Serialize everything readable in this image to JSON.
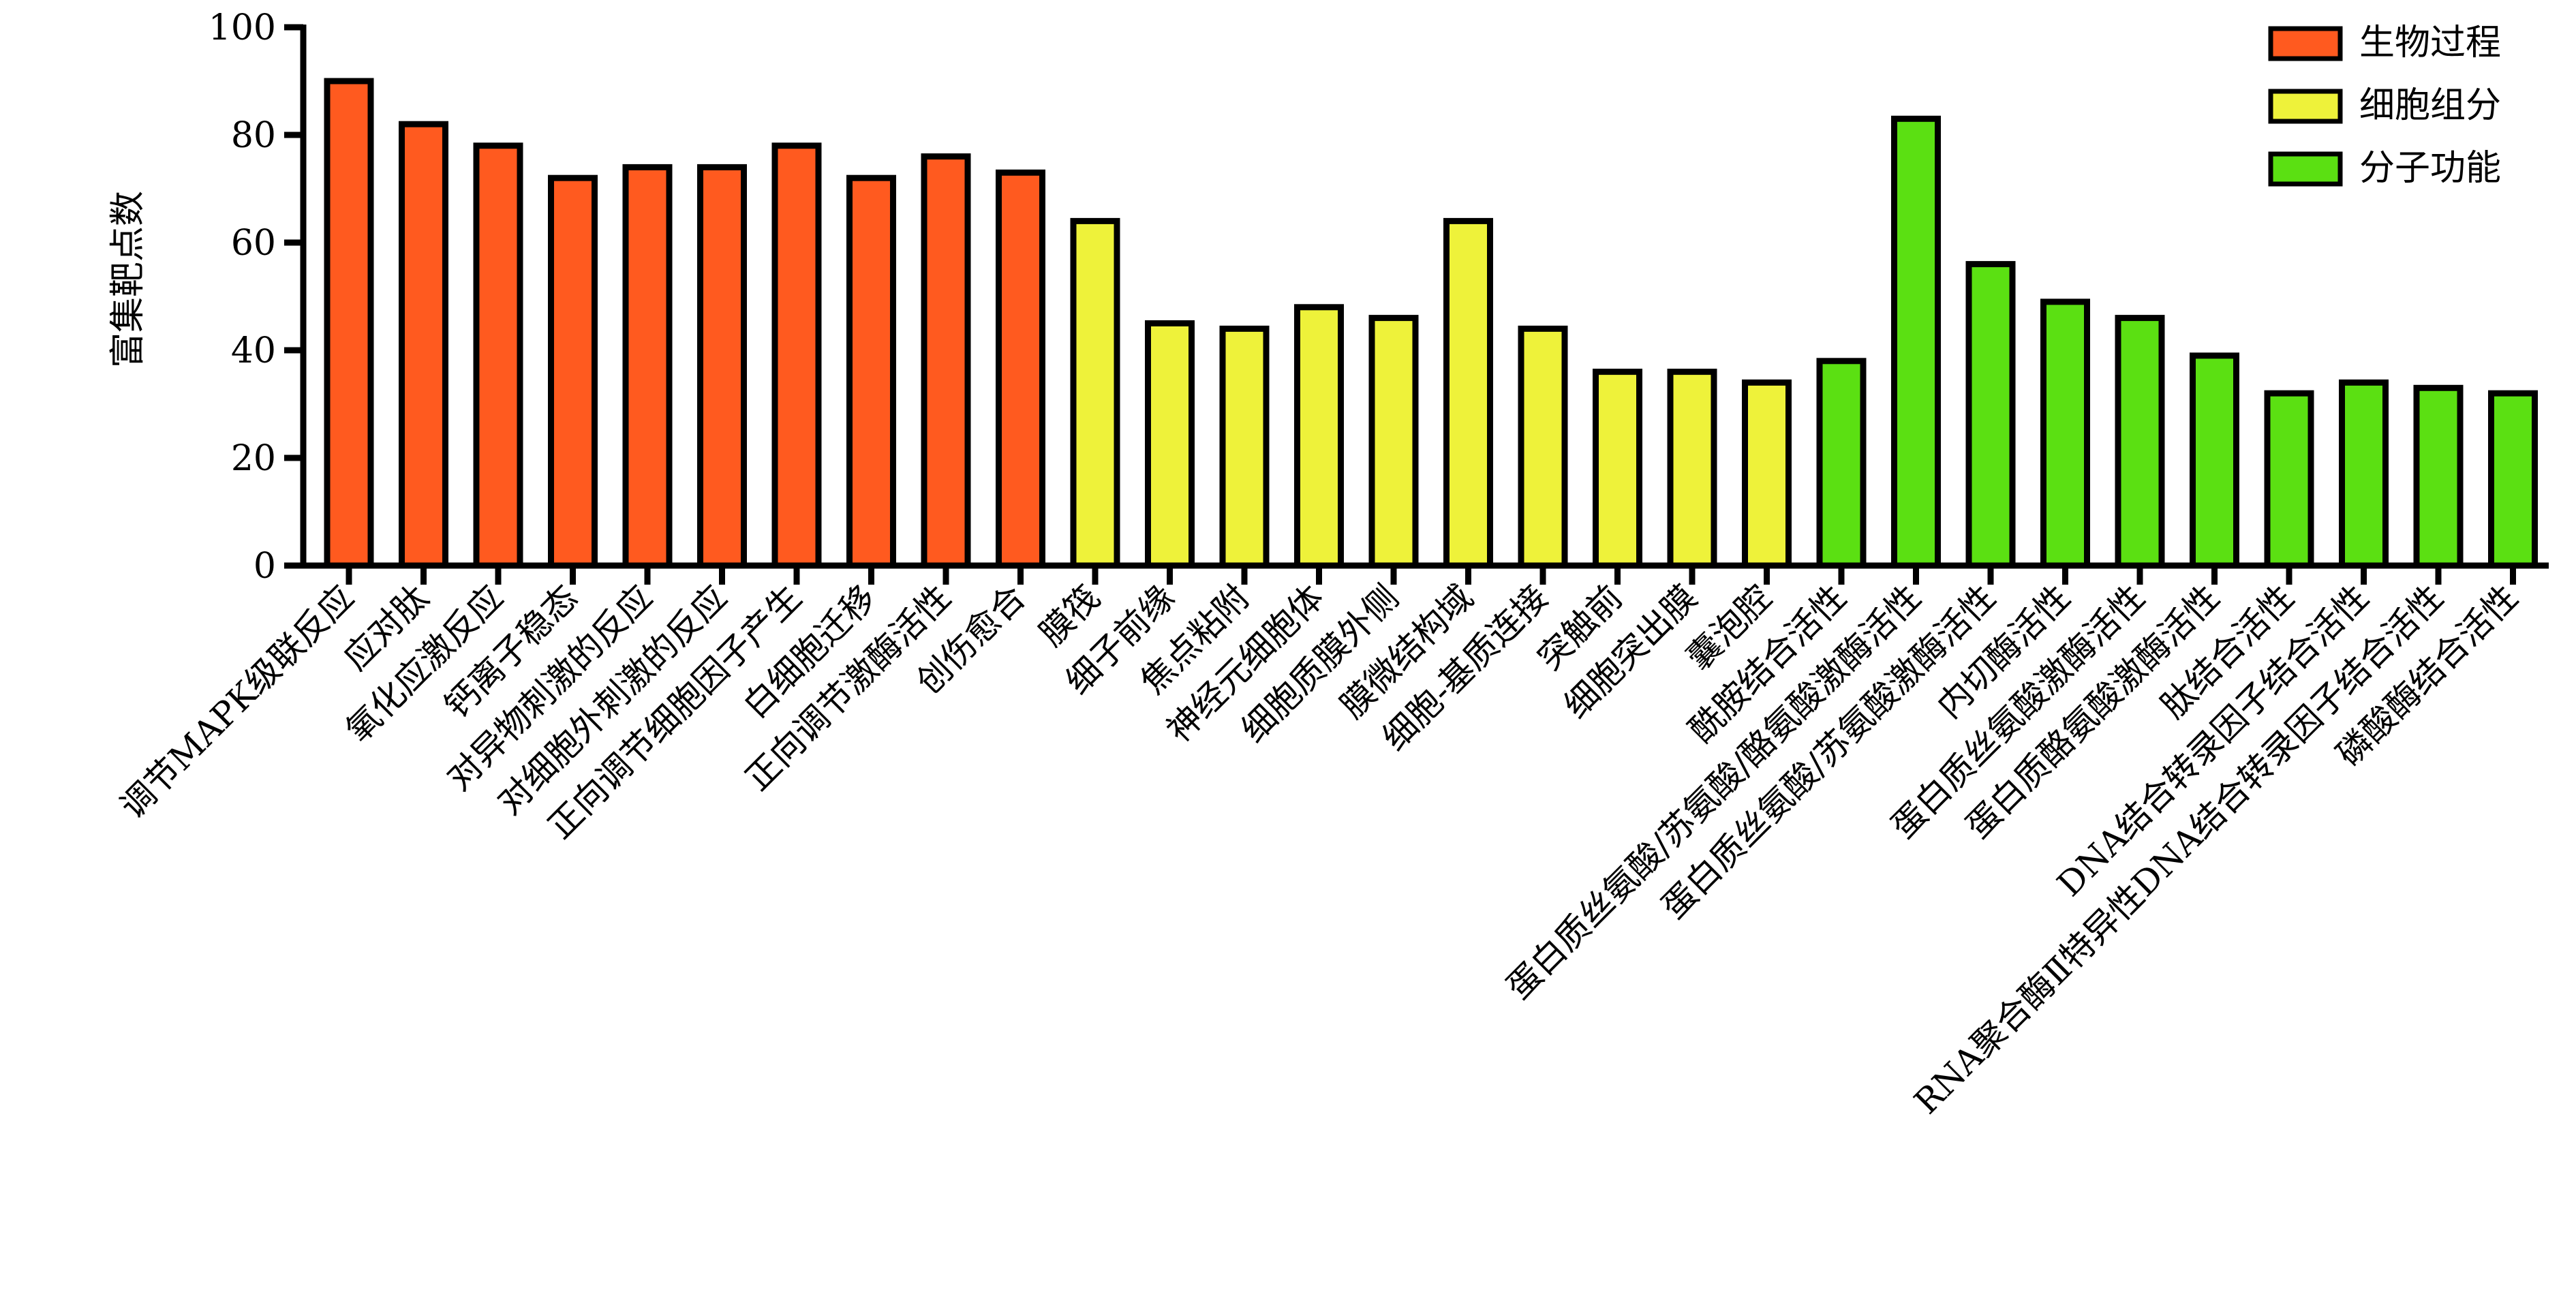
{
  "chart_data": {
    "type": "bar",
    "ylabel": "富集靶点数",
    "ylim": [
      0,
      100
    ],
    "yticks": [
      0,
      20,
      40,
      60,
      80,
      100
    ],
    "grid": false,
    "legend_position": "top-right",
    "groups": [
      {
        "name": "生物过程",
        "color": "#FF5A1F"
      },
      {
        "name": "细胞组分",
        "color": "#EEF23A"
      },
      {
        "name": "分子功能",
        "color": "#5BE012"
      }
    ],
    "categories": [
      "调节MAPK级联反应",
      "应对肽",
      "氧化应激反应",
      "钙离子稳态",
      "对异物刺激的反应",
      "对细胞外刺激的反应",
      "正向调节细胞因子产生",
      "白细胞迁移",
      "正向调节激酶活性",
      "创伤愈合",
      "膜筏",
      "细子前缘",
      "焦点粘附",
      "神经元细胞体",
      "细胞质膜外侧",
      "膜微结构域",
      "细胞-基质连接",
      "突触前",
      "细胞突出膜",
      "囊泡腔",
      "酰胺结合活性",
      "蛋白质丝氨酸/苏氨酸/酪氨酸激酶活性",
      "蛋白质丝氨酸/苏氨酸激酶活性",
      "内切酶活性",
      "蛋白质丝氨酸激酶活性",
      "蛋白质酪氨酸激酶活性",
      "肽结合活性",
      "DNA结合转录因子结合活性",
      "RNA聚合酶Ⅱ特异性DNA结合转录因子结合活性",
      "磷酸酶结合活性"
    ],
    "values": [
      90,
      82,
      78,
      72,
      74,
      74,
      78,
      72,
      76,
      73,
      64,
      45,
      44,
      48,
      46,
      64,
      44,
      36,
      36,
      34,
      38,
      83,
      56,
      49,
      46,
      39,
      32,
      34,
      33,
      32
    ],
    "group_index": [
      0,
      0,
      0,
      0,
      0,
      0,
      0,
      0,
      0,
      0,
      1,
      1,
      1,
      1,
      1,
      1,
      1,
      1,
      1,
      1,
      2,
      2,
      2,
      2,
      2,
      2,
      2,
      2,
      2,
      2
    ]
  }
}
